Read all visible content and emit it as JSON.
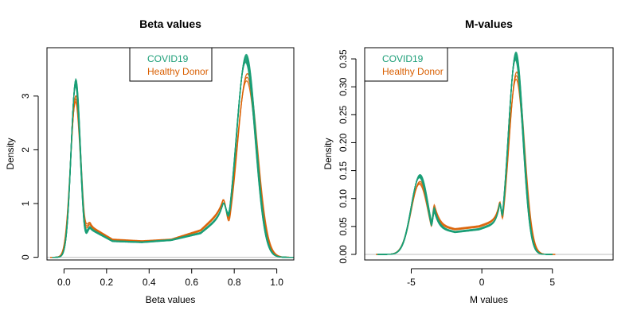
{
  "colors": {
    "covid": "#1b9e77",
    "healthy": "#d95f02",
    "zero_line": "#bebebe",
    "frame": "#000000"
  },
  "chart_data": [
    {
      "type": "line",
      "title": "Beta values",
      "xlabel": "Beta values",
      "ylabel": "Density",
      "xlim": [
        -0.08,
        1.08
      ],
      "ylim": [
        -0.05,
        3.9
      ],
      "x_ticks": [
        0.0,
        0.2,
        0.4,
        0.6,
        0.8,
        1.0
      ],
      "x_tick_labels": [
        "0.0",
        "0.2",
        "0.4",
        "0.6",
        "0.8",
        "1.0"
      ],
      "y_ticks": [
        0,
        1,
        2,
        3
      ],
      "y_tick_labels": [
        "0",
        "1",
        "2",
        "3"
      ],
      "legend": {
        "position": "top-center",
        "entries": [
          "COVID19",
          "Healthy Donor"
        ]
      },
      "series": [
        {
          "name": "COVID19",
          "peaks": [
            [
              0.055,
              3.25,
              0.022
            ],
            [
              0.855,
              3.7,
              0.045
            ]
          ],
          "plateau": {
            "start": 0.09,
            "end": 0.78,
            "values": [
              0.6,
              0.3,
              0.28,
              0.32,
              0.45,
              0.9
            ]
          },
          "replicates": 10
        },
        {
          "name": "Healthy Donor",
          "peaks": [
            [
              0.055,
              2.95,
              0.024
            ],
            [
              0.86,
              3.35,
              0.047
            ]
          ],
          "plateau": {
            "start": 0.09,
            "end": 0.78,
            "values": [
              0.65,
              0.33,
              0.3,
              0.33,
              0.5,
              1.0
            ]
          },
          "replicates": 3
        }
      ]
    },
    {
      "type": "line",
      "title": "M-values",
      "xlabel": "M values",
      "ylabel": "Density",
      "xlim": [
        -8.3,
        9.3
      ],
      "ylim": [
        -0.01,
        0.37
      ],
      "x_ticks": [
        -5,
        0,
        5
      ],
      "x_tick_labels": [
        "-5",
        "0",
        "5"
      ],
      "y_ticks": [
        0.0,
        0.05,
        0.1,
        0.15,
        0.2,
        0.25,
        0.3,
        0.35
      ],
      "y_tick_labels": [
        "0.00",
        "0.05",
        "0.10",
        "0.15",
        "0.20",
        "0.25",
        "0.30",
        "0.35"
      ],
      "legend": {
        "position": "top-left",
        "entries": [
          "COVID19",
          "Healthy Donor"
        ]
      },
      "series": [
        {
          "name": "COVID19",
          "peaks": [
            [
              -4.4,
              0.14,
              0.6
            ],
            [
              2.4,
              0.355,
              0.52
            ]
          ],
          "plateau": {
            "start": -3.6,
            "end": 1.5,
            "values": [
              0.05,
              0.04,
              0.045,
              0.06
            ]
          },
          "replicates": 10
        },
        {
          "name": "Healthy Donor",
          "peaks": [
            [
              -4.4,
              0.128,
              0.62
            ],
            [
              2.45,
              0.32,
              0.55
            ]
          ],
          "plateau": {
            "start": -3.6,
            "end": 1.5,
            "values": [
              0.055,
              0.045,
              0.05,
              0.065
            ]
          },
          "replicates": 3
        }
      ]
    }
  ]
}
